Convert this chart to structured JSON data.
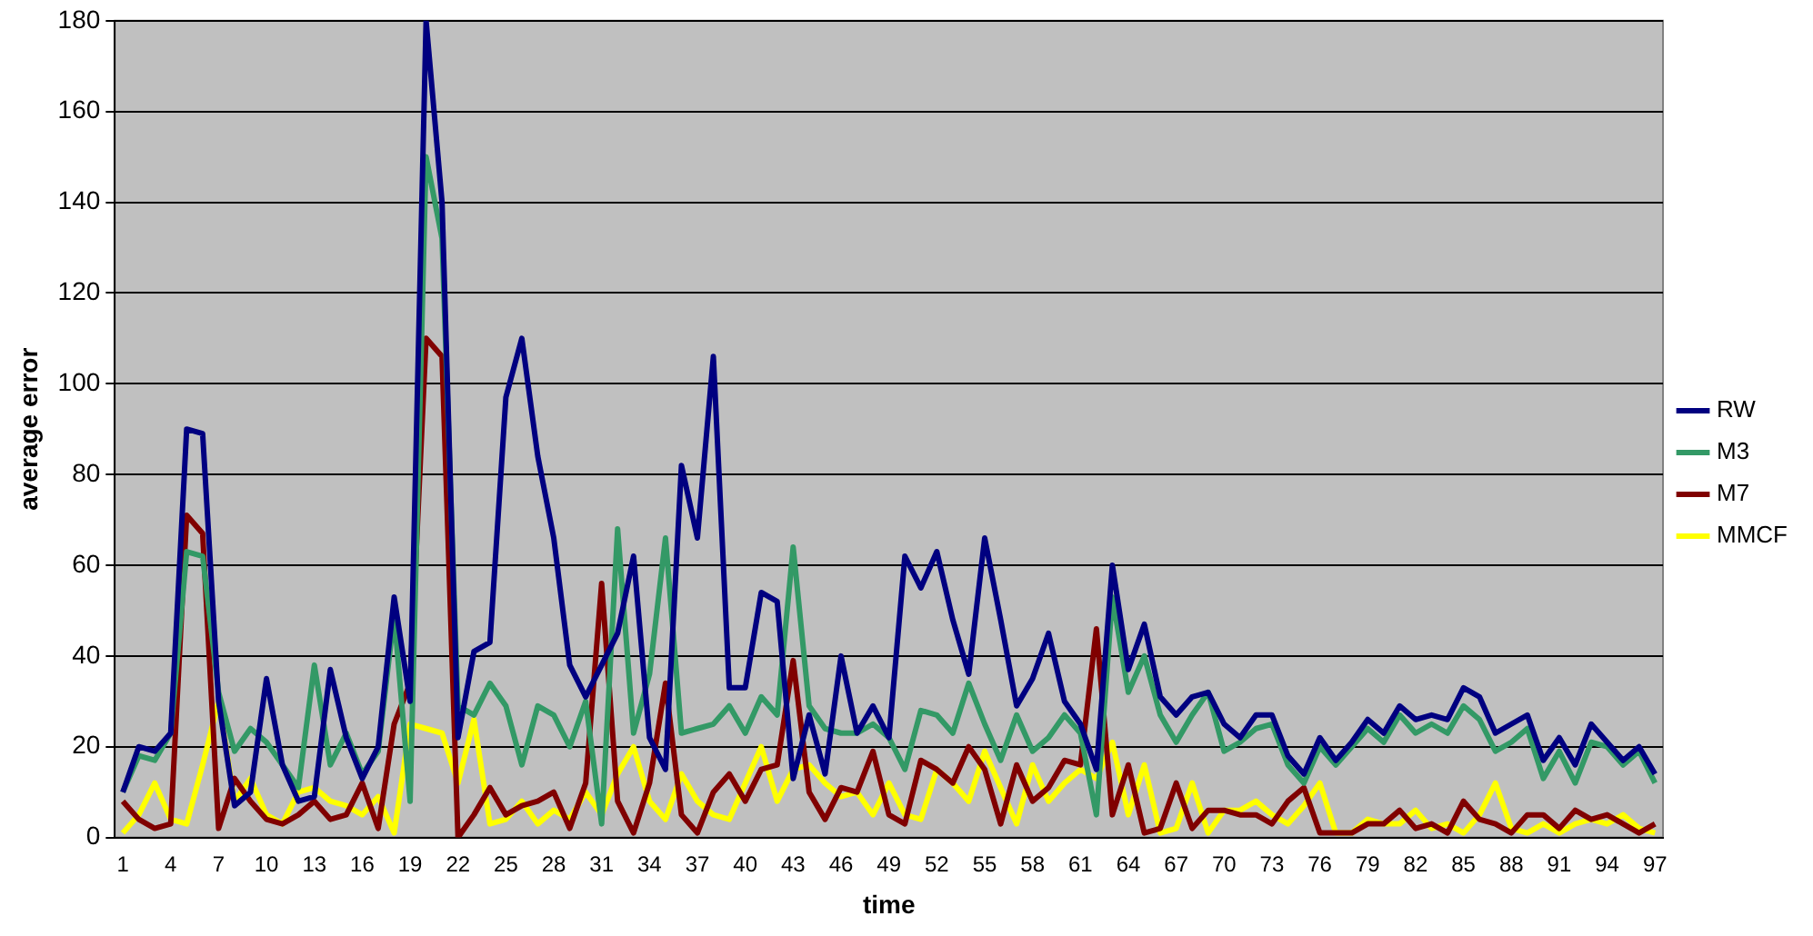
{
  "chart_data": {
    "type": "line",
    "xlabel": "time",
    "ylabel": "average error",
    "categories": [
      "1",
      null,
      null,
      "4",
      null,
      null,
      "7",
      null,
      null,
      "10",
      null,
      null,
      "13",
      null,
      null,
      "16",
      null,
      null,
      "19",
      null,
      null,
      "22",
      null,
      null,
      "25",
      null,
      null,
      "28",
      null,
      null,
      "31",
      null,
      null,
      "34",
      null,
      null,
      "37",
      null,
      null,
      "40",
      null,
      null,
      "43",
      null,
      null,
      "46",
      null,
      null,
      "49",
      null,
      null,
      "52",
      null,
      null,
      "55",
      null,
      null,
      "58",
      null,
      null,
      "61",
      null,
      null,
      "64",
      null,
      null,
      "67",
      null,
      null,
      "70",
      null,
      null,
      "73",
      null,
      null,
      "76",
      null,
      null,
      "79",
      null,
      null,
      "82",
      null,
      null,
      "85",
      null,
      null,
      "88",
      null,
      null,
      "91",
      null,
      null,
      "94",
      null,
      null,
      "97"
    ],
    "series": [
      {
        "name": "RW",
        "color": "#000080",
        "values": [
          10,
          20,
          19,
          23,
          90,
          89,
          30,
          7,
          10,
          35,
          16,
          8,
          9,
          37,
          22,
          13,
          20,
          53,
          30,
          180,
          140,
          22,
          41,
          43,
          97,
          110,
          84,
          66,
          38,
          31,
          38,
          45,
          62,
          22,
          15,
          82,
          66,
          106,
          33,
          33,
          54,
          52,
          13,
          27,
          14,
          40,
          23,
          29,
          22,
          62,
          55,
          63,
          48,
          36,
          66,
          48,
          29,
          35,
          45,
          30,
          25,
          15,
          60,
          37,
          47,
          31,
          27,
          31,
          32,
          25,
          22,
          27,
          27,
          18,
          14,
          22,
          17,
          21,
          26,
          23,
          29,
          26,
          27,
          26,
          33,
          31,
          23,
          25,
          27,
          17,
          22,
          16,
          25,
          21,
          17,
          20,
          14
        ]
      },
      {
        "name": "M3",
        "color": "#339966",
        "values": [
          10,
          18,
          17,
          23,
          63,
          62,
          32,
          19,
          24,
          21,
          16,
          11,
          38,
          16,
          23,
          14,
          19,
          49,
          8,
          150,
          132,
          29,
          27,
          34,
          29,
          16,
          29,
          27,
          20,
          30,
          3,
          68,
          23,
          36,
          66,
          23,
          24,
          25,
          29,
          23,
          31,
          27,
          64,
          29,
          24,
          23,
          23,
          25,
          22,
          15,
          28,
          27,
          23,
          34,
          25,
          17,
          27,
          19,
          22,
          27,
          23,
          5,
          53,
          32,
          40,
          27,
          21,
          27,
          32,
          19,
          21,
          24,
          25,
          16,
          12,
          20,
          16,
          20,
          24,
          21,
          27,
          23,
          25,
          23,
          29,
          26,
          19,
          21,
          24,
          13,
          19,
          12,
          21,
          20,
          16,
          19,
          12
        ]
      },
      {
        "name": "M7",
        "color": "#800000",
        "values": [
          8,
          4,
          2,
          3,
          71,
          67,
          2,
          13,
          8,
          4,
          3,
          5,
          8,
          4,
          5,
          12,
          2,
          25,
          34,
          110,
          106,
          0,
          5,
          11,
          5,
          7,
          8,
          10,
          2,
          12,
          56,
          8,
          1,
          12,
          34,
          5,
          1,
          10,
          14,
          8,
          15,
          16,
          39,
          10,
          4,
          11,
          10,
          19,
          5,
          3,
          17,
          15,
          12,
          20,
          15,
          3,
          16,
          8,
          11,
          17,
          16,
          46,
          5,
          16,
          1,
          2,
          12,
          2,
          6,
          6,
          5,
          5,
          3,
          8,
          11,
          1,
          1,
          1,
          3,
          3,
          6,
          2,
          3,
          1,
          8,
          4,
          3,
          1,
          5,
          5,
          2,
          6,
          4,
          5,
          3,
          1,
          3
        ]
      },
      {
        "name": "MMCF",
        "color": "#ffff00",
        "values": [
          1,
          5,
          12,
          4,
          3,
          16,
          30,
          8,
          13,
          5,
          3,
          10,
          11,
          8,
          7,
          5,
          9,
          1,
          25,
          24,
          23,
          12,
          26,
          3,
          4,
          8,
          3,
          6,
          4,
          10,
          5,
          14,
          20,
          8,
          4,
          14,
          8,
          5,
          4,
          12,
          20,
          8,
          15,
          16,
          12,
          9,
          10,
          5,
          12,
          5,
          4,
          15,
          12,
          8,
          19,
          11,
          3,
          16,
          8,
          12,
          15,
          13,
          21,
          5,
          16,
          1,
          2,
          12,
          1,
          6,
          6,
          8,
          5,
          3,
          7,
          12,
          1,
          1,
          4,
          3,
          3,
          6,
          2,
          3,
          1,
          5,
          12,
          2,
          1,
          3,
          1,
          3,
          4,
          3,
          5,
          2,
          1
        ]
      }
    ],
    "ylim": [
      0,
      180
    ],
    "yticks": [
      0,
      20,
      40,
      60,
      80,
      100,
      120,
      140,
      160,
      180
    ],
    "grid": "y",
    "legend": "right",
    "marker": "none",
    "line_style": "solid"
  }
}
